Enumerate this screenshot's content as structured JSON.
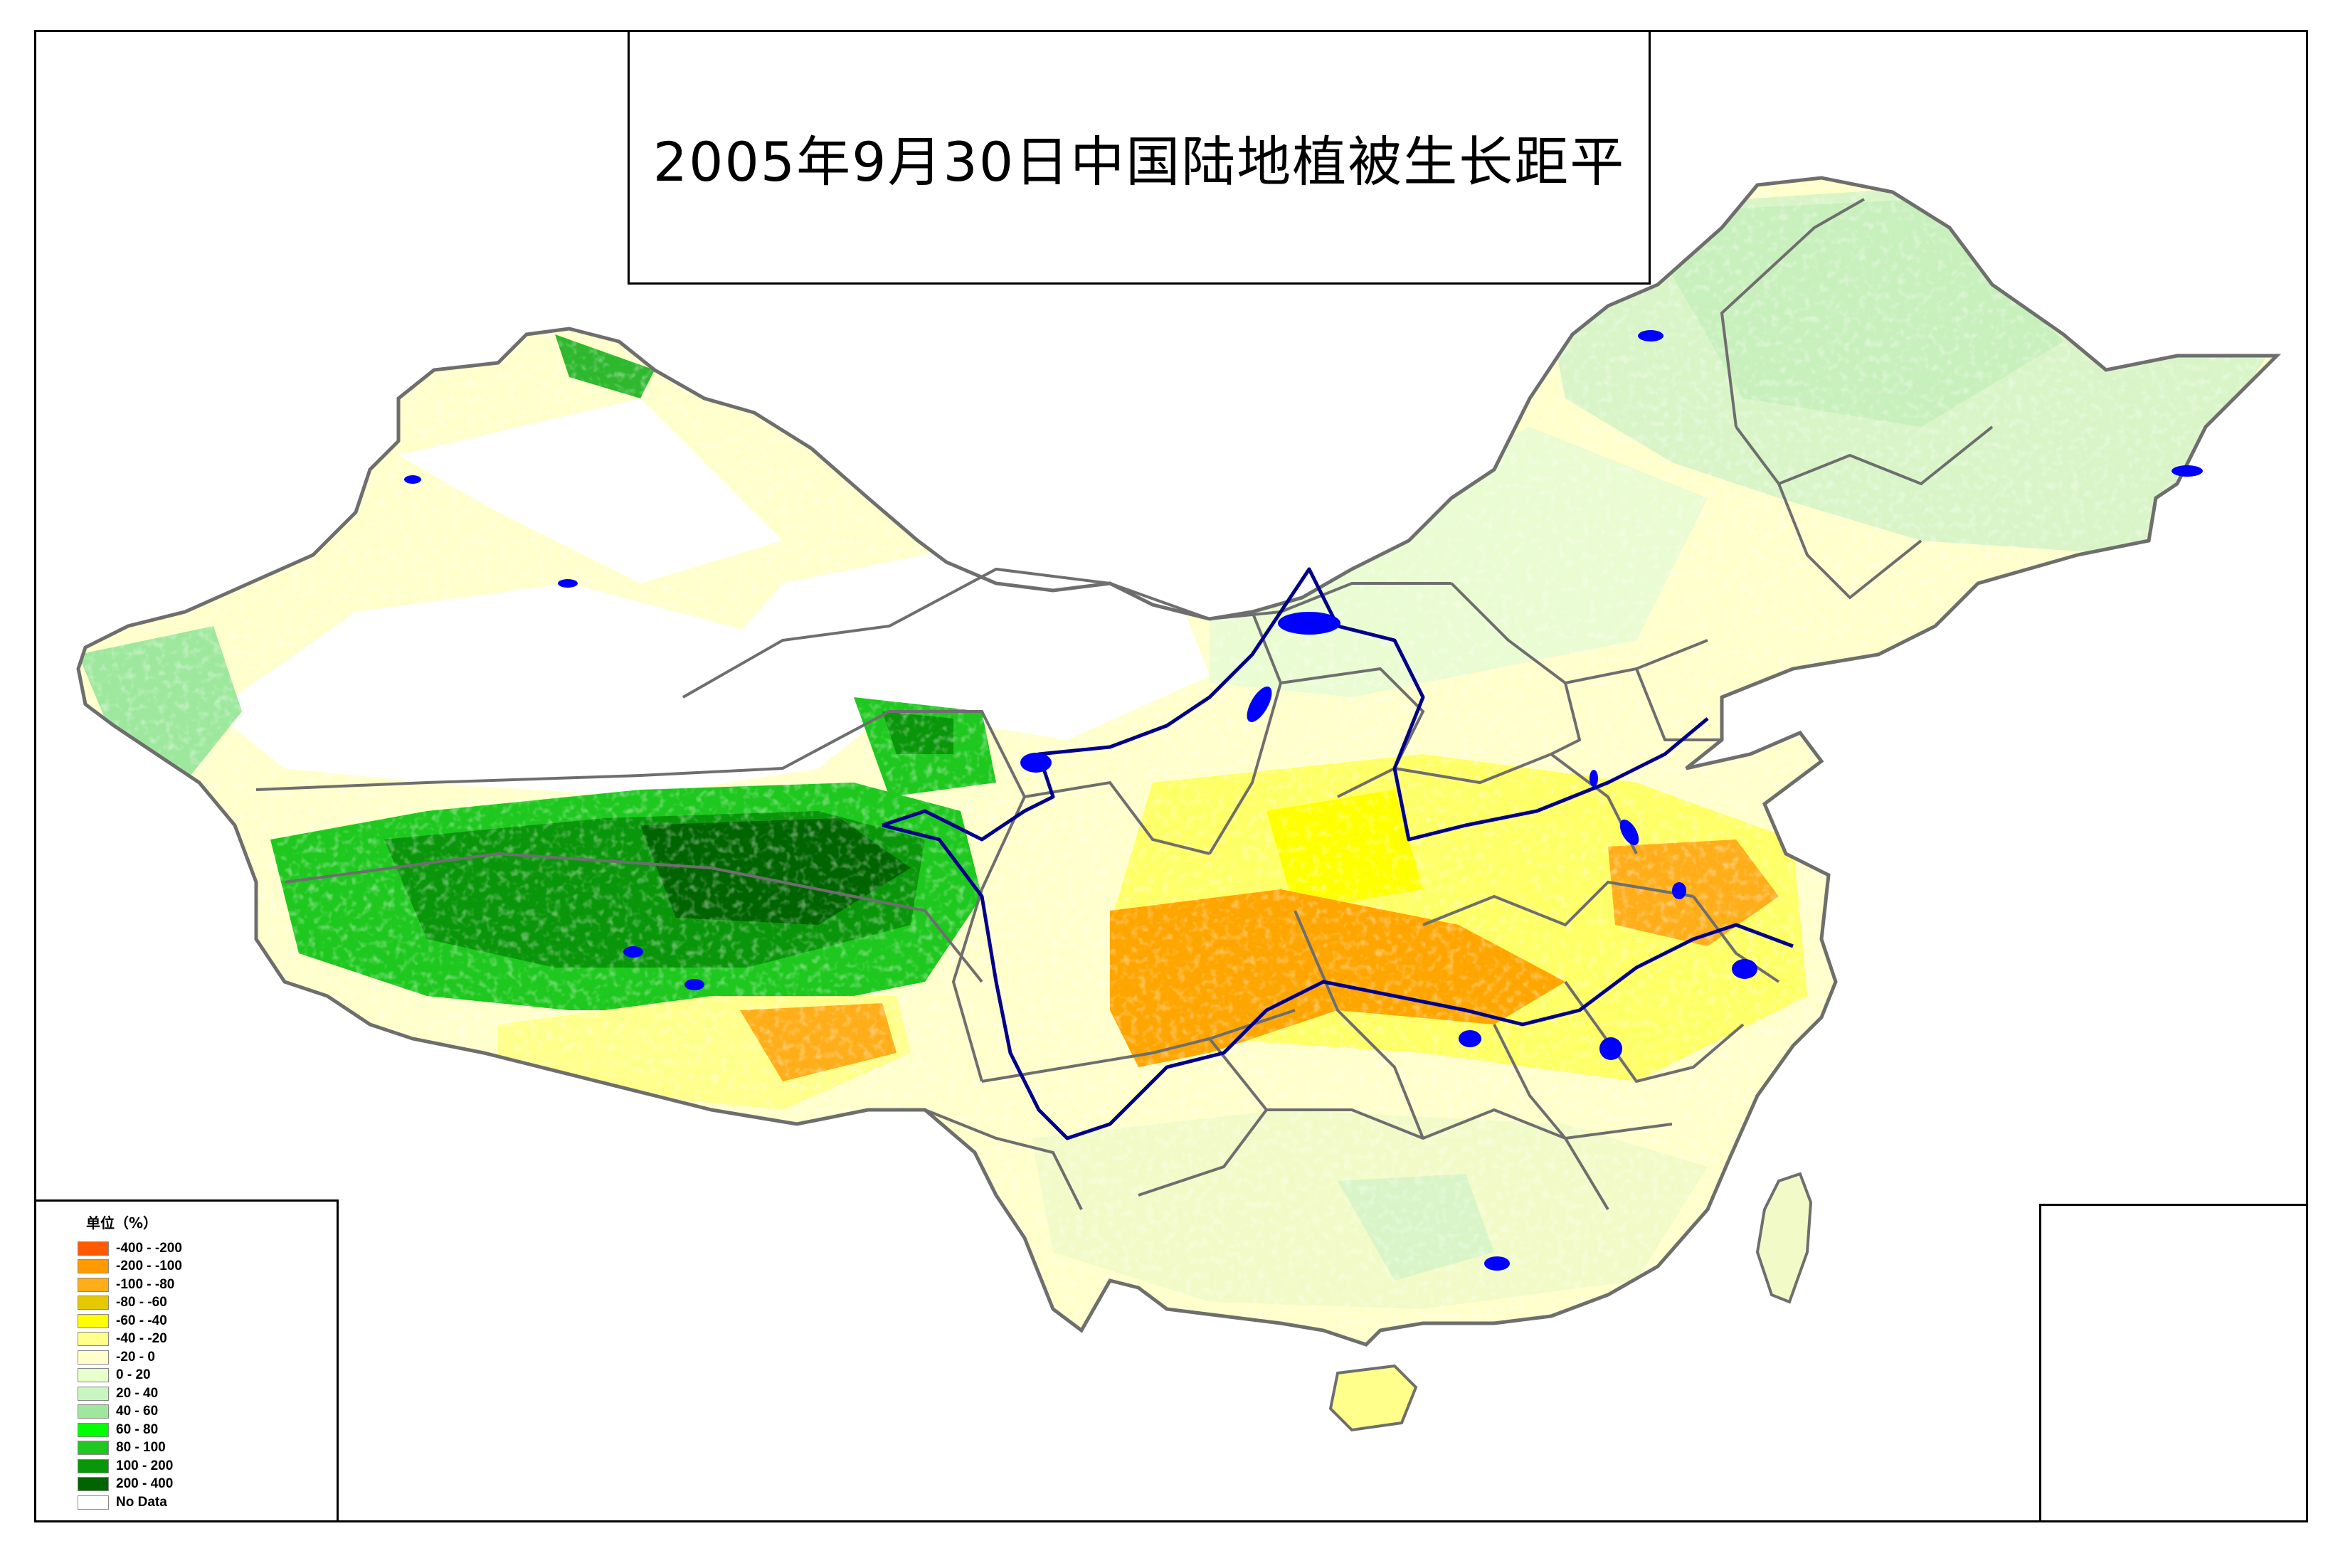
{
  "title": "2005年9月30日中国陆地植被生长距平",
  "legend": {
    "title": "单位（%）",
    "items": [
      {
        "label": "-400 - -200",
        "color": "#ff5a00"
      },
      {
        "label": "-200 - -100",
        "color": "#ff9a00"
      },
      {
        "label": "-100 - -80",
        "color": "#ffae1a"
      },
      {
        "label": "-80 - -60",
        "color": "#e6c800"
      },
      {
        "label": "-60 - -40",
        "color": "#ffff00"
      },
      {
        "label": "-40 - -20",
        "color": "#ffff8c"
      },
      {
        "label": "-20 - 0",
        "color": "#ffffcc"
      },
      {
        "label": "0 - 20",
        "color": "#e6ffcc"
      },
      {
        "label": "20 - 40",
        "color": "#c8f5c0"
      },
      {
        "label": "40 - 60",
        "color": "#9ee89e"
      },
      {
        "label": "60 - 80",
        "color": "#00ff00"
      },
      {
        "label": "80 - 100",
        "color": "#1ec81e"
      },
      {
        "label": "100 - 200",
        "color": "#0a960a"
      },
      {
        "label": "200 - 400",
        "color": "#006400"
      },
      {
        "label": "No Data",
        "color": "#ffffff"
      }
    ]
  },
  "colors": {
    "boundary": "#6e6e6e",
    "river": "#00008b",
    "lake": "#0000ff"
  }
}
